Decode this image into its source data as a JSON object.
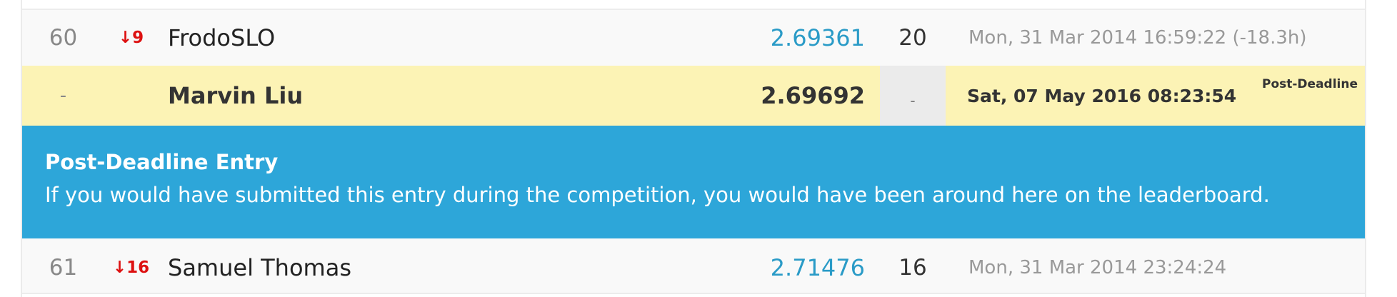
{
  "rows": [
    {
      "rank": "60",
      "delta": "↓9",
      "team": "FrodoSLO",
      "score": "2.69361",
      "entries": "20",
      "last_submission": "Mon, 31 Mar 2014 16:59:22 (-18.3h)"
    },
    {
      "rank": "61",
      "delta": "↓16",
      "team": "Samuel Thomas",
      "score": "2.71476",
      "entries": "16",
      "last_submission": "Mon, 31 Mar 2014 23:24:24"
    }
  ],
  "my_entry": {
    "rank": "-",
    "team": "Marvin Liu",
    "score": "2.69692",
    "entries": "-",
    "last_submission": "Sat, 07 May 2016 08:23:54",
    "tag": "Post-Deadline"
  },
  "notice": {
    "title": "Post-Deadline Entry",
    "body": "If you would have submitted this entry during the competition, you would have been around here on the leaderboard."
  },
  "colors": {
    "score_link": "#2a9bc7",
    "delta_down": "#dd1111",
    "highlight_row": "#fcf3b5",
    "notice_bg": "#2da6d9"
  }
}
